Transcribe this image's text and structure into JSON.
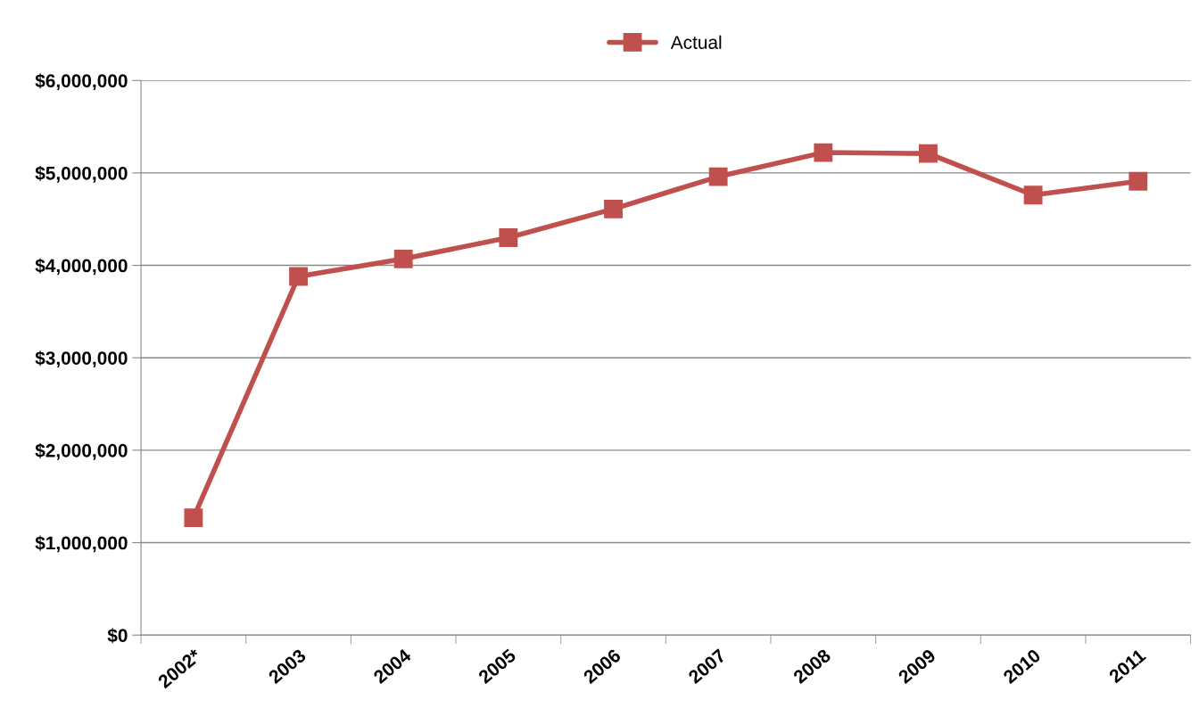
{
  "chart_data": {
    "type": "line",
    "categories": [
      "2002*",
      "2003",
      "2004",
      "2005",
      "2006",
      "2007",
      "2008",
      "2009",
      "2010",
      "2011"
    ],
    "series": [
      {
        "name": "Actual",
        "color": "#c0504d",
        "values": [
          1270000,
          3880000,
          4070000,
          4300000,
          4610000,
          4960000,
          5220000,
          5210000,
          4760000,
          4910000
        ]
      }
    ],
    "ylim": [
      0,
      6000000
    ],
    "yticks": [
      {
        "value": 0,
        "label": "$0"
      },
      {
        "value": 1000000,
        "label": "$1,000,000"
      },
      {
        "value": 2000000,
        "label": "$2,000,000"
      },
      {
        "value": 3000000,
        "label": "$3,000,000"
      },
      {
        "value": 4000000,
        "label": "$4,000,000"
      },
      {
        "value": 5000000,
        "label": "$5,000,000"
      },
      {
        "value": 6000000,
        "label": "$6,000,000"
      }
    ],
    "grid": "y",
    "legend": "top",
    "marker": "square",
    "line_style": "solid"
  }
}
